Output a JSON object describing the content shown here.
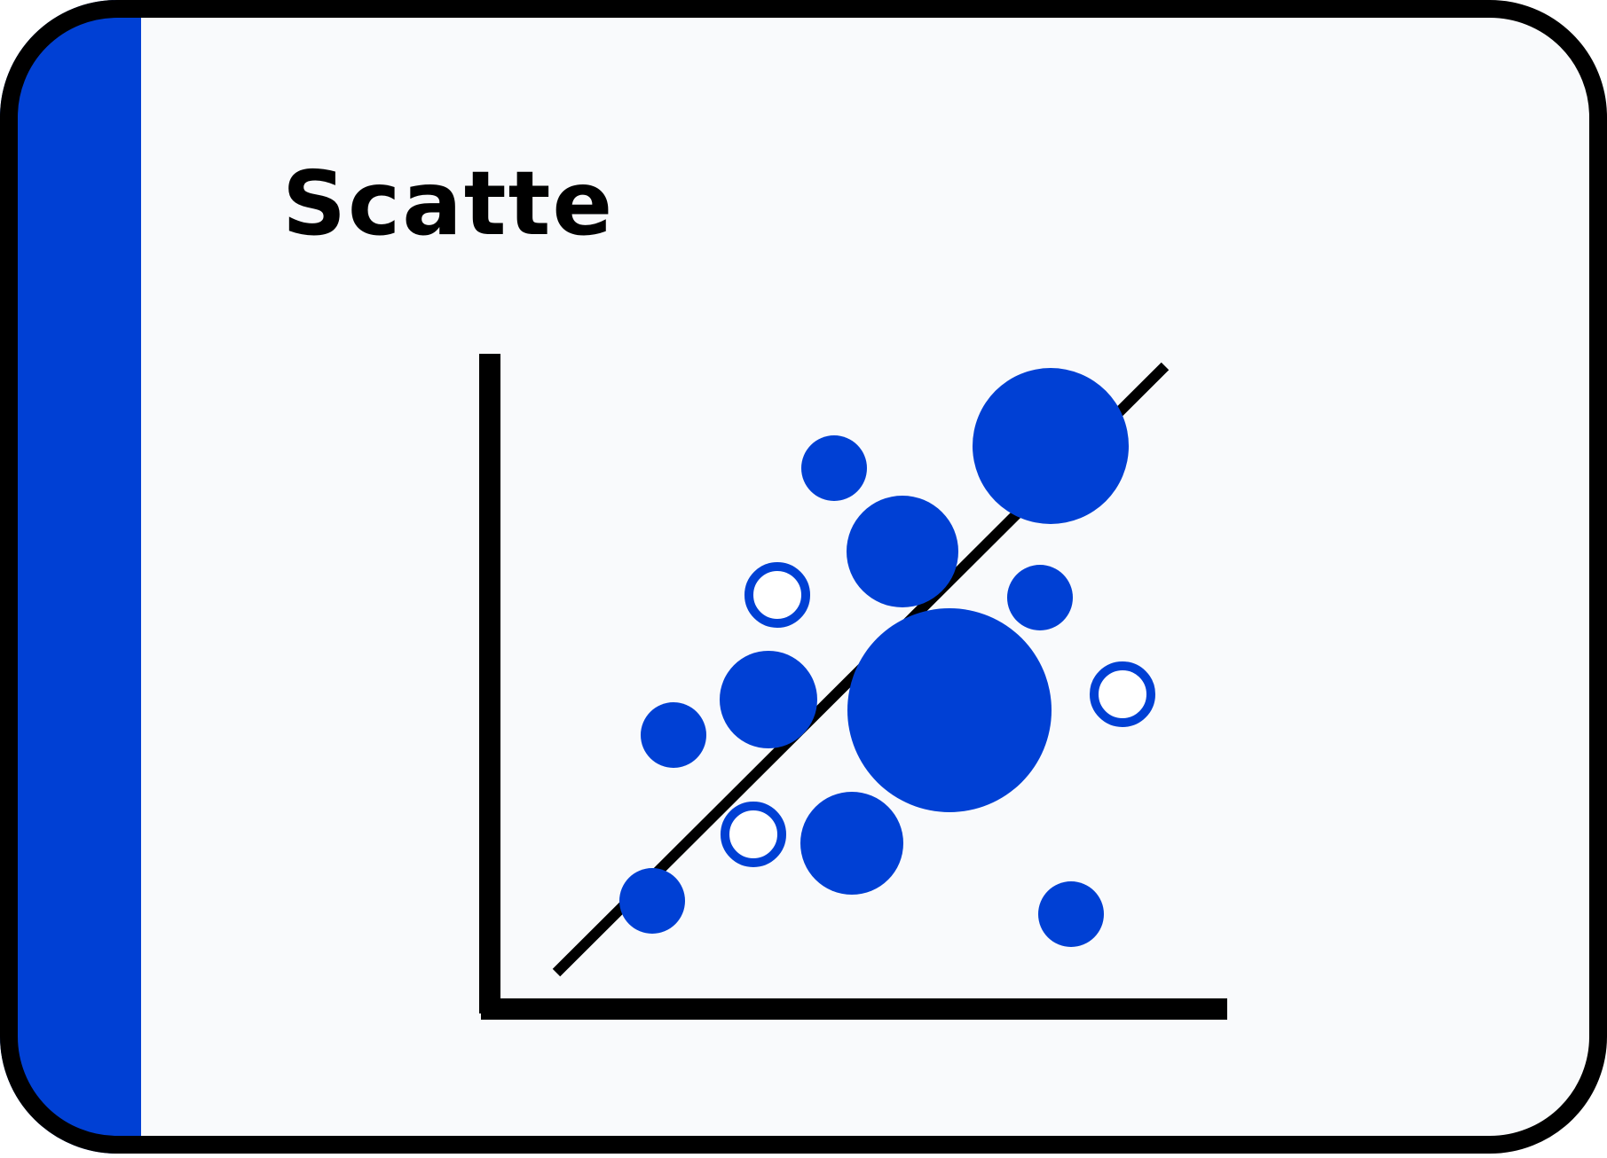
{
  "card": {
    "title": "Scatte",
    "accent_color": "#0040d4",
    "background_color": "#f9fafc",
    "border_color": "#000000"
  },
  "icon": {
    "name": "scatter-plot-icon",
    "marker_color": "#0040d4",
    "trend_line_color": "#000000",
    "points": [
      {
        "filled": true
      },
      {
        "filled": true
      },
      {
        "filled": true
      },
      {
        "filled": false
      },
      {
        "filled": true
      },
      {
        "filled": true
      },
      {
        "filled": true
      },
      {
        "filled": false
      },
      {
        "filled": true
      },
      {
        "filled": false
      },
      {
        "filled": true
      },
      {
        "filled": true
      },
      {
        "filled": true
      }
    ]
  }
}
